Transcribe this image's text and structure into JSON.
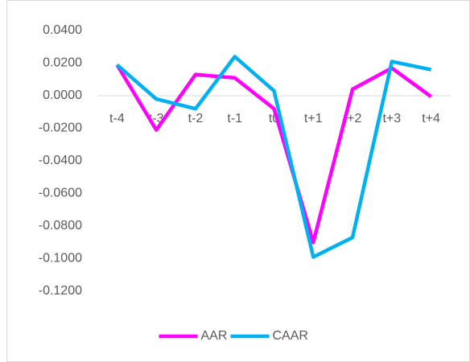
{
  "chart_data": {
    "type": "line",
    "categories": [
      "t-4",
      "t-3",
      "t-2",
      "t-1",
      "t0",
      "t+1",
      "t+2",
      "t+3",
      "t+4"
    ],
    "series": [
      {
        "name": "AAR",
        "color": "#ff00ff",
        "values": [
          0.019,
          -0.021,
          0.013,
          0.011,
          -0.008,
          -0.09,
          0.004,
          0.017,
          -0.0005
        ]
      },
      {
        "name": "CAAR",
        "color": "#00b0f0",
        "values": [
          0.019,
          -0.002,
          -0.008,
          0.024,
          0.003,
          -0.099,
          -0.087,
          0.021,
          0.016
        ]
      }
    ],
    "ylim": [
      -0.12,
      0.04
    ],
    "yticks": [
      {
        "value": 0.04,
        "label": "0.0400"
      },
      {
        "value": 0.02,
        "label": "0.0200"
      },
      {
        "value": 0,
        "label": "0.0000"
      },
      {
        "value": -0.02,
        "label": "-0.0200"
      },
      {
        "value": -0.04,
        "label": "-0.0400"
      },
      {
        "value": -0.06,
        "label": "-0.0600"
      },
      {
        "value": -0.08,
        "label": "-0.0800"
      },
      {
        "value": -0.1,
        "label": "-0.1000"
      },
      {
        "value": -0.12,
        "label": "-0.1200"
      }
    ],
    "grid": false,
    "legend": "bottom"
  }
}
